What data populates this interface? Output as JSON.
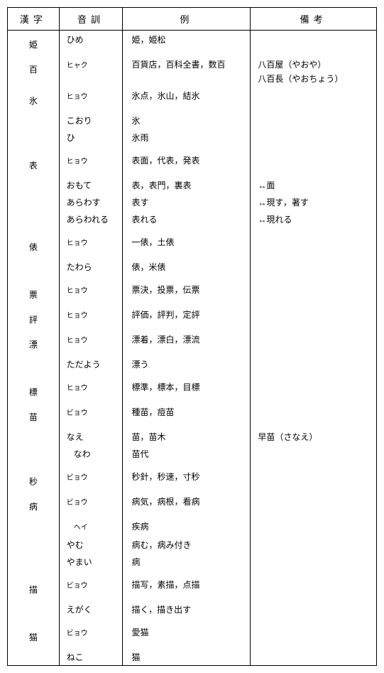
{
  "columns": {
    "kanji": "漢字",
    "onkun": "音訓",
    "rei": "例",
    "biko": "備考"
  },
  "entries": [
    {
      "kanji": "姫",
      "rows": [
        {
          "reading": "ひめ",
          "readingType": "kun",
          "example": "姫，姫松",
          "note": ""
        }
      ]
    },
    {
      "kanji": "百",
      "rows": [
        {
          "reading": "ヒャク",
          "readingType": "on",
          "example": "百貨店，百科全書，数百",
          "note": "八百屋（やおや）\n八百長（やおちょう）"
        }
      ]
    },
    {
      "kanji": "氷",
      "rows": [
        {
          "reading": "ヒョウ",
          "readingType": "on",
          "example": "氷点，氷山，結氷",
          "note": ""
        },
        {
          "reading": "こおり",
          "readingType": "kun",
          "example": "氷",
          "note": ""
        },
        {
          "reading": "ひ",
          "readingType": "kun",
          "example": "氷雨",
          "note": ""
        }
      ]
    },
    {
      "kanji": "表",
      "spacerBefore": true,
      "rows": [
        {
          "reading": "ヒョウ",
          "readingType": "on",
          "example": "表面，代表，発表",
          "note": ""
        },
        {
          "reading": "おもて",
          "readingType": "kun",
          "example": "表，表門，裏表",
          "note": "↔面"
        },
        {
          "reading": "あらわす",
          "readingType": "kun",
          "example": "表す",
          "note": "↔現す，著す"
        },
        {
          "reading": "あらわれる",
          "readingType": "kun",
          "example": "表れる",
          "note": "↔現れる"
        }
      ]
    },
    {
      "kanji": "俵",
      "spacerBefore": true,
      "rows": [
        {
          "reading": "ヒョウ",
          "readingType": "on",
          "example": "一俵，土俵",
          "note": ""
        },
        {
          "reading": "たわら",
          "readingType": "kun",
          "example": "俵，米俵",
          "note": ""
        }
      ]
    },
    {
      "kanji": "票",
      "spacerBefore": true,
      "rows": [
        {
          "reading": "ヒョウ",
          "readingType": "on",
          "example": "票決，投票，伝票",
          "note": ""
        }
      ]
    },
    {
      "kanji": "評",
      "rows": [
        {
          "reading": "ヒョウ",
          "readingType": "on",
          "example": "評価，評判，定評",
          "note": ""
        }
      ]
    },
    {
      "kanji": "漂",
      "rows": [
        {
          "reading": "ヒョウ",
          "readingType": "on",
          "example": "漂着，漂白，漂流",
          "note": ""
        },
        {
          "reading": "ただよう",
          "readingType": "kun",
          "example": "漂う",
          "note": ""
        }
      ]
    },
    {
      "kanji": "標",
      "spacerBefore": true,
      "rows": [
        {
          "reading": "ヒョウ",
          "readingType": "on",
          "example": "標準，標本，目標",
          "note": ""
        }
      ]
    },
    {
      "kanji": "苗",
      "rows": [
        {
          "reading": "ビョウ",
          "readingType": "on",
          "example": "種苗，痘苗",
          "note": ""
        },
        {
          "reading": "なえ",
          "readingType": "kun",
          "example": "苗，苗木",
          "note": "早苗（さなえ）"
        },
        {
          "reading": "なわ",
          "readingType": "kun",
          "indent": true,
          "example": "苗代",
          "note": ""
        }
      ]
    },
    {
      "kanji": "秒",
      "spacerBefore": true,
      "rows": [
        {
          "reading": "ビョウ",
          "readingType": "on",
          "example": "秒針，秒速，寸秒",
          "note": ""
        }
      ]
    },
    {
      "kanji": "病",
      "rows": [
        {
          "reading": "ビョウ",
          "readingType": "on",
          "example": "病気，病根，看病",
          "note": ""
        },
        {
          "reading": "ヘイ",
          "readingType": "on",
          "indent": true,
          "example": "疾病",
          "note": ""
        },
        {
          "reading": "やむ",
          "readingType": "kun",
          "example": "病む，病み付き",
          "note": ""
        },
        {
          "reading": "やまい",
          "readingType": "kun",
          "example": "病",
          "note": ""
        }
      ]
    },
    {
      "kanji": "描",
      "spacerBefore": true,
      "rows": [
        {
          "reading": "ビョウ",
          "readingType": "on",
          "example": "描写，素描，点描",
          "note": ""
        },
        {
          "reading": "えがく",
          "readingType": "kun",
          "example": "描く，描き出す",
          "note": ""
        }
      ]
    },
    {
      "kanji": "猫",
      "spacerBefore": true,
      "rows": [
        {
          "reading": "ビョウ",
          "readingType": "on",
          "example": "愛猫",
          "note": ""
        },
        {
          "reading": "ねこ",
          "readingType": "kun",
          "example": "猫",
          "note": ""
        }
      ]
    }
  ]
}
